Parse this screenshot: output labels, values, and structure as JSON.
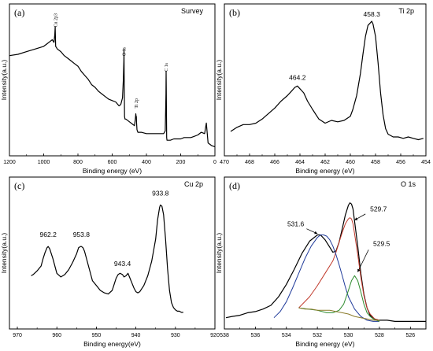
{
  "chart_data": [
    {
      "type": "line",
      "panel": "(a)",
      "title": "Survey",
      "xlabel": "Binding energy (eV)",
      "ylabel": "Intensity(a.u.)",
      "xlim": [
        1200,
        0
      ],
      "ylim": [
        0,
        1
      ],
      "xticks": [
        1200,
        1000,
        800,
        600,
        400,
        200,
        0
      ],
      "annotations": [
        {
          "text": "Cu 2p3",
          "x": 930
        },
        {
          "text": "O 1s",
          "x": 531
        },
        {
          "text": "Ti 2p",
          "x": 459
        },
        {
          "text": "C 1s",
          "x": 285
        }
      ],
      "series": [
        {
          "color": "#000000",
          "x": [
            1200,
            1150,
            1100,
            1050,
            1000,
            980,
            960,
            950,
            940,
            935,
            933,
            930,
            920,
            900,
            880,
            860,
            840,
            820,
            800,
            780,
            760,
            740,
            720,
            700,
            680,
            660,
            640,
            620,
            600,
            580,
            560,
            550,
            540,
            535,
            532,
            531,
            530,
            528,
            525,
            520,
            500,
            480,
            470,
            465,
            462,
            460,
            459,
            458,
            455,
            450,
            430,
            400,
            380,
            350,
            320,
            300,
            290,
            286,
            285,
            284,
            282,
            280,
            260,
            240,
            220,
            200,
            180,
            160,
            140,
            120,
            100,
            80,
            60,
            50,
            40,
            20,
            0
          ],
          "y": [
            0.74,
            0.75,
            0.77,
            0.79,
            0.81,
            0.83,
            0.85,
            0.86,
            0.84,
            0.9,
            0.96,
            0.81,
            0.79,
            0.77,
            0.74,
            0.72,
            0.7,
            0.68,
            0.66,
            0.62,
            0.59,
            0.56,
            0.52,
            0.5,
            0.47,
            0.45,
            0.43,
            0.41,
            0.4,
            0.39,
            0.36,
            0.37,
            0.42,
            0.55,
            0.7,
            0.79,
            0.6,
            0.28,
            0.26,
            0.26,
            0.24,
            0.22,
            0.21,
            0.26,
            0.3,
            0.27,
            0.28,
            0.24,
            0.18,
            0.16,
            0.16,
            0.15,
            0.15,
            0.15,
            0.15,
            0.15,
            0.17,
            0.45,
            0.62,
            0.5,
            0.12,
            0.1,
            0.1,
            0.11,
            0.11,
            0.11,
            0.12,
            0.12,
            0.12,
            0.13,
            0.14,
            0.16,
            0.15,
            0.23,
            0.08,
            0.06,
            0.05
          ]
        }
      ]
    },
    {
      "type": "line",
      "panel": "(b)",
      "title": "Ti 2p",
      "xlabel": "Binding energy (eV)",
      "ylabel": "Intensity(a.u.)",
      "xlim": [
        470,
        454
      ],
      "ylim": [
        0,
        1
      ],
      "xticks": [
        470,
        468,
        466,
        464,
        462,
        460,
        458,
        456,
        454
      ],
      "peak_labels": [
        {
          "text": "464.2",
          "x": 464.2,
          "y": 0.5
        },
        {
          "text": "458.3",
          "x": 458.3,
          "y": 0.96
        }
      ],
      "series": [
        {
          "color": "#000000",
          "x": [
            469.5,
            469,
            468.5,
            468,
            467.5,
            467,
            466.5,
            466,
            465.5,
            465,
            464.7,
            464.4,
            464.2,
            464,
            463.7,
            463.4,
            463,
            462.5,
            462,
            461.5,
            461,
            460.5,
            460,
            459.8,
            459.5,
            459.2,
            459,
            458.8,
            458.6,
            458.4,
            458.3,
            458.2,
            458,
            457.8,
            457.6,
            457.4,
            457.2,
            457,
            456.6,
            456.2,
            455.8,
            455.4,
            455,
            454.6,
            454.2
          ],
          "y": [
            0.16,
            0.19,
            0.21,
            0.21,
            0.22,
            0.25,
            0.29,
            0.33,
            0.38,
            0.42,
            0.45,
            0.48,
            0.49,
            0.47,
            0.44,
            0.38,
            0.32,
            0.25,
            0.22,
            0.24,
            0.23,
            0.24,
            0.27,
            0.32,
            0.42,
            0.58,
            0.72,
            0.85,
            0.93,
            0.95,
            0.96,
            0.94,
            0.85,
            0.66,
            0.44,
            0.28,
            0.18,
            0.14,
            0.12,
            0.12,
            0.11,
            0.12,
            0.11,
            0.1,
            0.11
          ]
        }
      ]
    },
    {
      "type": "line",
      "panel": "(c)",
      "title": "Cu 2p",
      "xlabel": "Binding  energy(eV)",
      "ylabel": "Intensity(a.u.)",
      "xlim": [
        972,
        920
      ],
      "ylim": [
        0,
        1
      ],
      "xticks": [
        970,
        960,
        950,
        940,
        930,
        920
      ],
      "peak_labels": [
        {
          "text": "962.2",
          "x": 962.2,
          "y": 0.6
        },
        {
          "text": "953.8",
          "x": 953.8,
          "y": 0.6
        },
        {
          "text": "943.4",
          "x": 943.4,
          "y": 0.36
        },
        {
          "text": "933.8",
          "x": 933.8,
          "y": 0.94
        }
      ],
      "series": [
        {
          "color": "#000000",
          "x": [
            966.5,
            966,
            965,
            964,
            963.5,
            963,
            962.5,
            962.2,
            961.8,
            961,
            960,
            959,
            958,
            957,
            956,
            955,
            954.5,
            954,
            953.8,
            953.4,
            953,
            952,
            951,
            950,
            949,
            948,
            947,
            946,
            945.5,
            945,
            944.5,
            944,
            943.4,
            943,
            942.5,
            942,
            941.5,
            941,
            940.5,
            940,
            939.5,
            939,
            938,
            937,
            936,
            935,
            934.5,
            934,
            933.8,
            933.4,
            933,
            932.5,
            932,
            931.5,
            931,
            930.5,
            930,
            929.5,
            929,
            928.5,
            928
          ],
          "y": [
            0.32,
            0.33,
            0.36,
            0.4,
            0.46,
            0.51,
            0.55,
            0.56,
            0.54,
            0.46,
            0.34,
            0.31,
            0.33,
            0.37,
            0.43,
            0.5,
            0.55,
            0.56,
            0.56,
            0.55,
            0.52,
            0.4,
            0.28,
            0.24,
            0.2,
            0.18,
            0.17,
            0.2,
            0.25,
            0.3,
            0.33,
            0.34,
            0.33,
            0.31,
            0.32,
            0.34,
            0.3,
            0.26,
            0.22,
            0.19,
            0.18,
            0.19,
            0.24,
            0.32,
            0.44,
            0.62,
            0.78,
            0.88,
            0.9,
            0.89,
            0.82,
            0.62,
            0.38,
            0.2,
            0.1,
            0.06,
            0.04,
            0.03,
            0.03,
            0.02,
            0.02
          ]
        }
      ]
    },
    {
      "type": "line",
      "panel": "(d)",
      "title": "O 1s",
      "xlabel": "Binding energy (eV)",
      "ylabel": "Intensity(a.u.)",
      "xlim": [
        538,
        525
      ],
      "ylim": [
        0,
        1
      ],
      "xticks": [
        538,
        536,
        534,
        532,
        530,
        528,
        526
      ],
      "peak_labels": [
        {
          "text": "531.6",
          "x": 531.6,
          "y": 0.74
        },
        {
          "text": "529.7",
          "x": 529.7,
          "y": 0.84
        },
        {
          "text": "529.5",
          "x": 529.5,
          "y": 0.58
        }
      ],
      "series": [
        {
          "color": "#000000",
          "x": [
            537.9,
            537.5,
            537,
            536.5,
            536,
            535.5,
            535,
            534.5,
            534,
            533.5,
            533,
            532.5,
            532,
            531.8,
            531.5,
            531.2,
            531,
            530.8,
            530.6,
            530.4,
            530.2,
            530,
            529.9,
            529.8,
            529.7,
            529.6,
            529.4,
            529.2,
            529,
            528.8,
            528.6,
            528.3,
            528,
            527.5,
            527,
            526.5,
            526,
            525.5,
            525
          ],
          "y": [
            0.04,
            0.05,
            0.06,
            0.08,
            0.09,
            0.11,
            0.14,
            0.21,
            0.31,
            0.43,
            0.56,
            0.66,
            0.71,
            0.71,
            0.67,
            0.61,
            0.57,
            0.58,
            0.65,
            0.76,
            0.87,
            0.95,
            0.97,
            0.96,
            0.92,
            0.82,
            0.62,
            0.4,
            0.23,
            0.12,
            0.06,
            0.03,
            0.02,
            0.02,
            0.01,
            0.01,
            0.01,
            0.01,
            0.01
          ]
        },
        {
          "color": "#c0392b",
          "x": [
            533.2,
            532.5,
            532,
            531.5,
            531,
            530.8,
            530.6,
            530.4,
            530.2,
            530,
            529.9,
            529.8,
            529.7,
            529.6,
            529.4,
            529.2,
            529,
            528.8,
            528.6,
            528.3,
            528
          ],
          "y": [
            0.12,
            0.21,
            0.3,
            0.4,
            0.5,
            0.57,
            0.65,
            0.73,
            0.8,
            0.84,
            0.85,
            0.84,
            0.8,
            0.72,
            0.55,
            0.37,
            0.22,
            0.12,
            0.07,
            0.03,
            0.02
          ]
        },
        {
          "color": "#1f3a9a",
          "x": [
            534.8,
            534.4,
            534,
            533.6,
            533.2,
            532.8,
            532.4,
            532,
            531.8,
            531.6,
            531.4,
            531.2,
            531,
            530.8,
            530.6,
            530.4,
            530.2,
            530,
            529.6,
            529.2,
            528.8,
            528.4,
            528
          ],
          "y": [
            0.04,
            0.09,
            0.17,
            0.28,
            0.4,
            0.52,
            0.62,
            0.69,
            0.71,
            0.71,
            0.7,
            0.67,
            0.62,
            0.55,
            0.47,
            0.38,
            0.29,
            0.21,
            0.11,
            0.05,
            0.02,
            0.01,
            0.01
          ]
        },
        {
          "color": "#2e8b2e",
          "x": [
            533.2,
            532.6,
            532,
            531.4,
            531,
            530.6,
            530.3,
            530,
            529.8,
            529.6,
            529.4,
            529.2,
            529,
            528.8,
            528.6,
            528.4,
            528.2,
            528
          ],
          "y": [
            0.12,
            0.11,
            0.1,
            0.08,
            0.08,
            0.1,
            0.15,
            0.26,
            0.34,
            0.38,
            0.34,
            0.25,
            0.15,
            0.08,
            0.05,
            0.03,
            0.02,
            0.01
          ]
        },
        {
          "color": "#8a7a2a",
          "x": [
            533.2,
            532.8,
            532.4,
            532,
            531.6,
            531.2,
            530.8,
            530.4,
            530,
            529.6,
            529.2,
            528.8,
            528.4,
            528
          ],
          "y": [
            0.12,
            0.11,
            0.11,
            0.1,
            0.1,
            0.1,
            0.09,
            0.08,
            0.07,
            0.05,
            0.04,
            0.03,
            0.02,
            0.02
          ]
        }
      ]
    }
  ]
}
